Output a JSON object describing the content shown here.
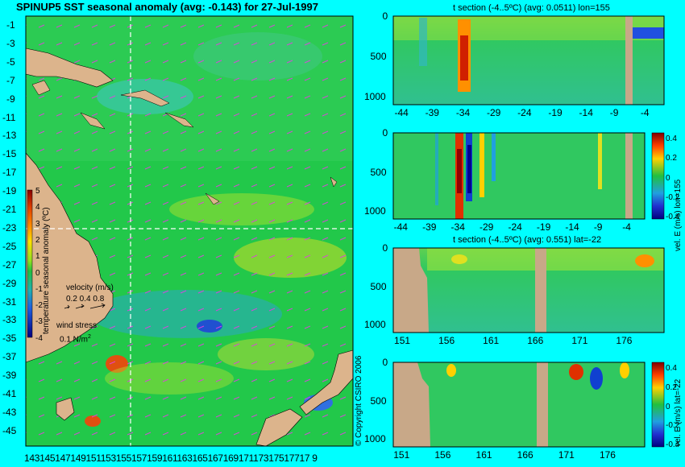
{
  "title": "SPINUP5 SST seasonal anomaly (avg: -0.143) for 27-Jul-1997",
  "colors": {
    "background": "#00ffff",
    "land": "#dcb48c",
    "section_land": "#c8a888",
    "ocean_base": "#22c84a"
  },
  "copyright": "© Copyright CSIRO 2006",
  "map": {
    "lat_ticks": [
      "-1",
      "-3",
      "-5",
      "-7",
      "-9",
      "-11",
      "-13",
      "-15",
      "-17",
      "-19",
      "-21",
      "-23",
      "-25",
      "-27",
      "-29",
      "-31",
      "-33",
      "-35",
      "-37",
      "-39",
      "-41",
      "-43",
      "-45"
    ],
    "lon_tick_text": "14314514714915115315515715916116316516716917117317517717 9",
    "colorbar": {
      "label": "temperature seasonal anomaly (ºC)",
      "ticks": [
        "5",
        "4",
        "3",
        "2",
        "1",
        "0",
        "-1",
        "-2",
        "-3",
        "-4"
      ]
    },
    "velocity_legend": {
      "label": "velocity (m/s)",
      "ticks": "0.2 0.4 0.8"
    },
    "wind_legend": {
      "label": "wind stress",
      "value": "0.1 N/m",
      "superscript": "2"
    }
  },
  "panels": [
    {
      "title": "t section (-4..5ºC) (avg: 0.0511) lon=155",
      "x_ticks": [
        "-44",
        "-39",
        "-34",
        "-29",
        "-24",
        "-19",
        "-14",
        "-9",
        "-4"
      ],
      "y_ticks": [
        "0",
        "500",
        "1000"
      ]
    },
    {
      "title": "",
      "x_ticks": [
        "-44",
        "-39",
        "-34",
        "-29",
        "-24",
        "-19",
        "-14",
        "-9",
        "-4"
      ],
      "y_ticks": [
        "0",
        "500",
        "1000"
      ],
      "cbar_ticks": [
        "0.4",
        "0.2",
        "0",
        "-0.2",
        "-0.4"
      ],
      "cbar_label": "vel. E (m/s) lon=155"
    },
    {
      "title": "t section (-4..5ºC) (avg: 0.551) lat=-22",
      "x_ticks": [
        "151",
        "156",
        "161",
        "166",
        "171",
        "176"
      ],
      "y_ticks": [
        "0",
        "500",
        "1000"
      ]
    },
    {
      "title": "",
      "x_ticks": [
        "151",
        "156",
        "161",
        "166",
        "171",
        "176"
      ],
      "y_ticks": [
        "0",
        "500",
        "1000"
      ],
      "cbar_ticks": [
        "0.4",
        "0.2",
        "0",
        "-0.2",
        "-0.4"
      ],
      "cbar_label": "vel. E (m/s) lat=-22"
    }
  ]
}
